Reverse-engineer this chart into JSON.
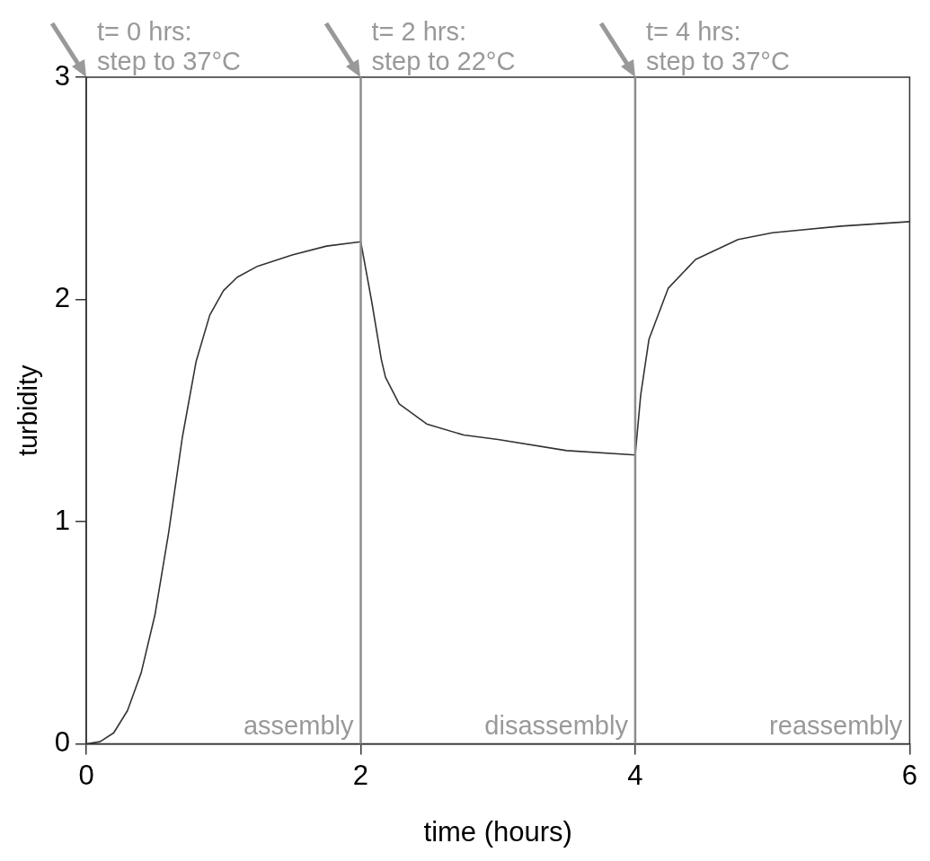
{
  "chart_data": {
    "type": "line",
    "xlabel": "time (hours)",
    "ylabel": "turbidity",
    "xlim": [
      0,
      6
    ],
    "ylim": [
      0,
      3
    ],
    "xticks": [
      0,
      2,
      4,
      6
    ],
    "yticks": [
      0,
      1,
      2,
      3
    ],
    "grid": false,
    "legend": false,
    "marker": "none",
    "line_style": "solid",
    "series": [
      {
        "color": "#333333",
        "x": [
          0,
          0.1,
          0.2,
          0.3,
          0.4,
          0.5,
          0.6,
          0.7,
          0.8,
          0.9,
          1.0,
          1.1,
          1.25,
          1.5,
          1.75,
          2.0,
          2.08,
          2.15,
          2.18,
          2.28,
          2.48,
          2.75,
          3.0,
          3.5,
          4.0,
          4.04,
          4.1,
          4.24,
          4.44,
          4.75,
          5.0,
          5.5,
          6.0
        ],
        "values": [
          0,
          0.01,
          0.05,
          0.15,
          0.32,
          0.58,
          0.95,
          1.38,
          1.72,
          1.93,
          2.04,
          2.1,
          2.15,
          2.2,
          2.24,
          2.26,
          1.99,
          1.73,
          1.65,
          1.53,
          1.44,
          1.39,
          1.37,
          1.32,
          1.3,
          1.57,
          1.82,
          2.05,
          2.18,
          2.27,
          2.3,
          2.33,
          2.35
        ]
      }
    ],
    "ref_lines": [
      {
        "axis": "x",
        "value": 2,
        "color": "#8c8c8c"
      },
      {
        "axis": "x",
        "value": 4,
        "color": "#8c8c8c"
      }
    ],
    "annotations": [
      "t= 0 hrs:\nstep to 37°C",
      "t= 2 hrs:\nstep to 22°C",
      "t= 4 hrs:\nstep to 37°C",
      "assembly",
      "disassembly",
      "reassembly"
    ]
  }
}
